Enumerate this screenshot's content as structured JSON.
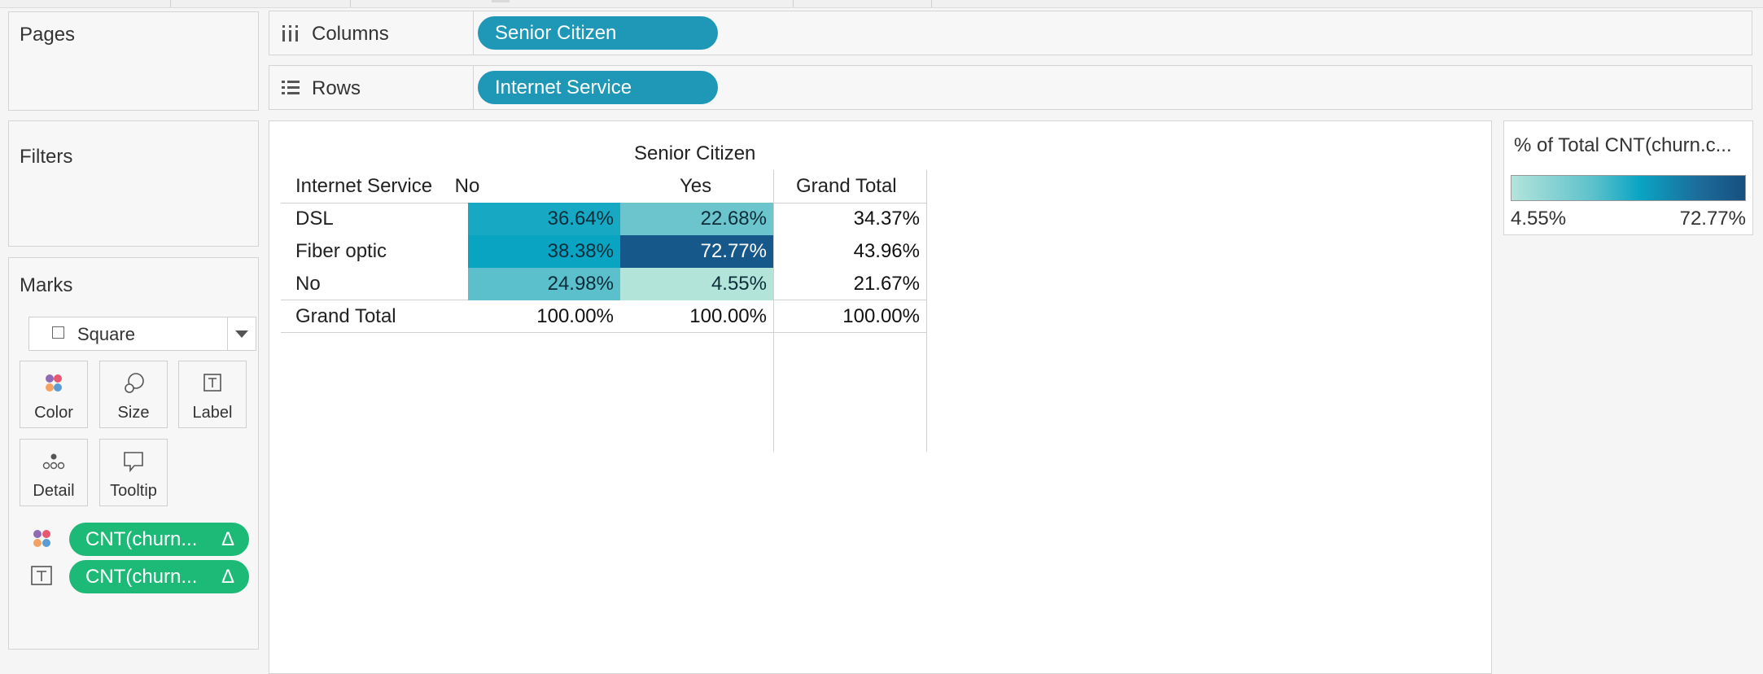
{
  "side_panels": {
    "pages_title": "Pages",
    "filters_title": "Filters",
    "marks_title": "Marks"
  },
  "shelves": {
    "columns": {
      "label": "Columns",
      "pill": "Senior Citizen",
      "icon": "columns-icon"
    },
    "rows": {
      "label": "Rows",
      "pill": "Internet Service",
      "icon": "rows-icon"
    }
  },
  "marks": {
    "mark_type": "Square",
    "buttons": [
      {
        "label": "Color",
        "icon": "color-dots-icon"
      },
      {
        "label": "Size",
        "icon": "size-circles-icon"
      },
      {
        "label": "Label",
        "icon": "label-text-icon"
      },
      {
        "label": "Detail",
        "icon": "detail-dots-icon"
      },
      {
        "label": "Tooltip",
        "icon": "tooltip-bubble-icon"
      }
    ],
    "fields": [
      {
        "text": "CNT(churn...",
        "delta": "Δ",
        "encoding": "color"
      },
      {
        "text": "CNT(churn...",
        "delta": "Δ",
        "encoding": "label"
      }
    ]
  },
  "crosstab": {
    "column_field": "Senior Citizen",
    "row_field": "Internet Service",
    "columns": [
      "No",
      "Yes",
      "Grand Total"
    ],
    "rows": [
      {
        "label": "DSL",
        "values": [
          "36.64%",
          "22.68%",
          "34.37%"
        ]
      },
      {
        "label": "Fiber optic",
        "values": [
          "38.38%",
          "72.77%",
          "43.96%"
        ]
      },
      {
        "label": "No",
        "values": [
          "24.98%",
          "4.55%",
          "21.67%"
        ]
      },
      {
        "label": "Grand Total",
        "values": [
          "100.00%",
          "100.00%",
          "100.00%"
        ]
      }
    ]
  },
  "legend": {
    "title": "% of Total CNT(churn.c...",
    "min_label": "4.55%",
    "max_label": "72.77%",
    "colors": {
      "low": "#b3e4dc",
      "mid": "#0aa4c4",
      "high": "#16507f"
    }
  },
  "chart_data": {
    "type": "heatmap",
    "x_categories": [
      "No",
      "Yes"
    ],
    "y_categories": [
      "DSL",
      "Fiber optic",
      "No"
    ],
    "values": [
      [
        36.64,
        22.68
      ],
      [
        38.38,
        72.77
      ],
      [
        24.98,
        4.55
      ]
    ],
    "row_grand_total": [
      34.37,
      43.96,
      21.67
    ],
    "column_grand_total": [
      100.0,
      100.0
    ],
    "overall_grand_total": 100.0,
    "color_range": [
      4.55,
      72.77
    ],
    "xlabel": "Senior Citizen",
    "ylabel": "Internet Service"
  }
}
